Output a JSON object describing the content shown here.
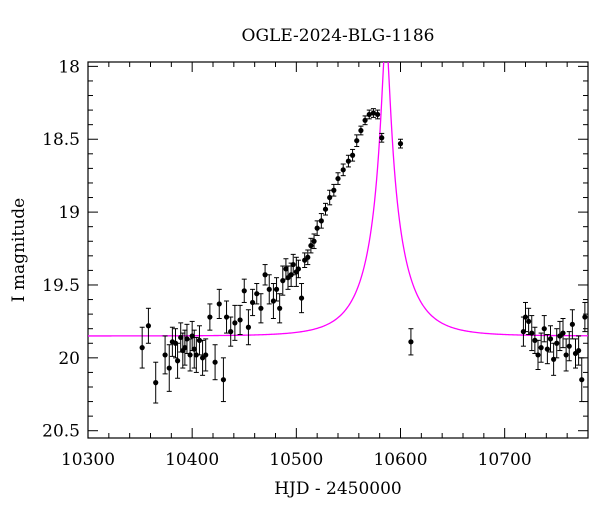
{
  "chart_data": {
    "type": "scatter",
    "title": "OGLE-2024-BLG-1186",
    "xlabel": "HJD - 2450000",
    "ylabel": "I magnitude",
    "xlim": [
      10300,
      10780
    ],
    "ylim": [
      20.55,
      17.97
    ],
    "y_inverted": true,
    "grid": false,
    "x_ticks": [
      10300,
      10400,
      10500,
      10600,
      10700
    ],
    "x_tick_labels": [
      "10300",
      "10400",
      "10500",
      "10600",
      "10700"
    ],
    "y_ticks": [
      18,
      18.5,
      19,
      19.5,
      20,
      20.5
    ],
    "y_tick_labels": [
      "18",
      "18.5",
      "19",
      "19.5",
      "20",
      "20.5"
    ],
    "colors": {
      "points": "#000000",
      "model": "#ff00ff",
      "axes": "#000000"
    },
    "model": {
      "kind": "point-lens microlensing curve",
      "t0": 10586,
      "u0": 0.09,
      "tE": 38,
      "i_base": 19.85,
      "blend_fraction": 0.55
    },
    "series": [
      {
        "kind": "data-with-errorbars",
        "x": [
          10352,
          10358,
          10365,
          10374,
          10378,
          10381,
          10384,
          10386,
          10389,
          10391,
          10393,
          10395,
          10398,
          10400,
          10402,
          10404,
          10407,
          10410,
          10413,
          10417,
          10422,
          10426,
          10430,
          10433,
          10437,
          10441,
          10446,
          10450,
          10454,
          10458,
          10462,
          10466,
          10470,
          10474,
          10478,
          10481,
          10484,
          10487,
          10490,
          10492,
          10495,
          10497,
          10500,
          10502,
          10505,
          10508,
          10511,
          10514,
          10517,
          10520,
          10524,
          10528,
          10532,
          10536,
          10540,
          10545,
          10550,
          10554,
          10558,
          10562,
          10566,
          10570,
          10574,
          10578,
          10582,
          10600,
          10610,
          10718,
          10720,
          10723,
          10726,
          10729,
          10732,
          10735,
          10738,
          10741,
          10744,
          10747,
          10750,
          10753,
          10756,
          10759,
          10762,
          10765,
          10768,
          10771,
          10774,
          10777
        ],
        "y": [
          19.93,
          19.78,
          20.17,
          19.98,
          20.07,
          19.89,
          19.9,
          20.02,
          19.86,
          19.95,
          19.93,
          19.87,
          19.98,
          19.85,
          19.94,
          19.98,
          19.88,
          20.0,
          19.98,
          19.72,
          20.03,
          19.63,
          20.15,
          19.72,
          19.82,
          19.76,
          19.74,
          19.54,
          19.79,
          19.62,
          19.56,
          19.66,
          19.43,
          19.53,
          19.61,
          19.53,
          19.66,
          19.47,
          19.39,
          19.45,
          19.43,
          19.36,
          19.41,
          19.39,
          19.59,
          19.33,
          19.31,
          19.23,
          19.2,
          19.11,
          19.06,
          18.98,
          18.9,
          18.85,
          18.77,
          18.71,
          18.65,
          18.61,
          18.51,
          18.44,
          18.37,
          18.33,
          18.32,
          18.33,
          18.49,
          18.53,
          19.89,
          19.82,
          19.72,
          19.75,
          19.83,
          19.88,
          19.98,
          19.93,
          19.8,
          19.94,
          19.87,
          20.01,
          19.9,
          19.85,
          19.83,
          19.98,
          19.92,
          19.77,
          19.97,
          19.95,
          20.15,
          19.72
        ],
        "err": [
          0.14,
          0.12,
          0.14,
          0.13,
          0.16,
          0.1,
          0.1,
          0.12,
          0.1,
          0.12,
          0.12,
          0.1,
          0.11,
          0.1,
          0.13,
          0.12,
          0.1,
          0.12,
          0.11,
          0.09,
          0.12,
          0.1,
          0.15,
          0.11,
          0.1,
          0.12,
          0.1,
          0.08,
          0.12,
          0.09,
          0.07,
          0.1,
          0.07,
          0.1,
          0.12,
          0.08,
          0.1,
          0.1,
          0.07,
          0.08,
          0.08,
          0.07,
          0.1,
          0.06,
          0.1,
          0.05,
          0.05,
          0.05,
          0.05,
          0.05,
          0.05,
          0.04,
          0.05,
          0.04,
          0.04,
          0.04,
          0.04,
          0.04,
          0.04,
          0.03,
          0.03,
          0.03,
          0.03,
          0.03,
          0.03,
          0.03,
          0.09,
          0.1,
          0.1,
          0.09,
          0.12,
          0.09,
          0.1,
          0.1,
          0.09,
          0.1,
          0.09,
          0.11,
          0.1,
          0.1,
          0.1,
          0.11,
          0.1,
          0.1,
          0.1,
          0.1,
          0.15,
          0.1
        ]
      }
    ]
  }
}
